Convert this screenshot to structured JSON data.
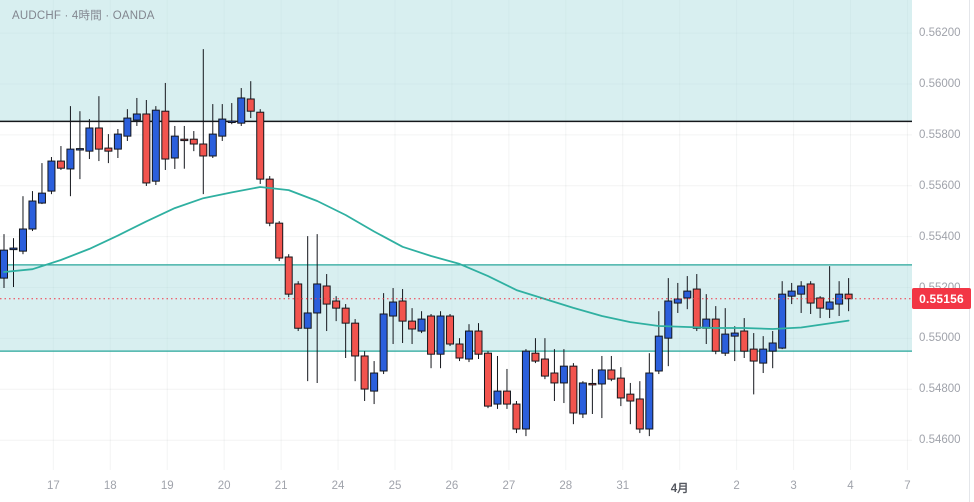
{
  "title": {
    "text": "AUDCHF · 4時間 · OANDA",
    "symbol": "AUDCHF",
    "interval": "4時間",
    "provider": "OANDA"
  },
  "chart_data": {
    "type": "candlestick",
    "symbol": "AUDCHF",
    "timeframe": "4時間",
    "provider": "OANDA",
    "current_price": "0.55156",
    "current_price_value": 0.55156,
    "y_axis": {
      "labels": [
        "0.56200",
        "0.56000",
        "0.55800",
        "0.55600",
        "0.55400",
        "0.55200",
        "0.55000",
        "0.54800",
        "0.54600"
      ],
      "values": [
        0.562,
        0.56,
        0.558,
        0.556,
        0.554,
        0.552,
        0.55,
        0.548,
        0.546
      ]
    },
    "x_axis": {
      "labels": [
        "17",
        "18",
        "19",
        "20",
        "21",
        "24",
        "25",
        "26",
        "27",
        "28",
        "31",
        "4月",
        "2",
        "3",
        "4",
        "7"
      ],
      "emphasized_label": "4月",
      "first_tick_candle_index": 5.2,
      "candles_per_tick": 6
    },
    "zones": [
      {
        "name": "upper-supply-zone",
        "top": 0.5633,
        "bottom": 0.55853
      },
      {
        "name": "mid-demand-zone",
        "top": 0.55289,
        "bottom": 0.5495
      }
    ],
    "resistance_line_price": 0.55853,
    "candles": [
      [
        0.55237,
        0.5541,
        0.55198,
        0.55347
      ],
      [
        0.55349,
        0.55394,
        0.55202,
        0.55355
      ],
      [
        0.55343,
        0.55559,
        0.55331,
        0.5543
      ],
      [
        0.5543,
        0.55579,
        0.55422,
        0.5554
      ],
      [
        0.55532,
        0.55689,
        0.55528,
        0.55571
      ],
      [
        0.55579,
        0.55713,
        0.55567,
        0.55697
      ],
      [
        0.55697,
        0.55756,
        0.55662,
        0.55669
      ],
      [
        0.55666,
        0.55913,
        0.55559,
        0.55744
      ],
      [
        0.55742,
        0.55893,
        0.55626,
        0.55746
      ],
      [
        0.55736,
        0.55862,
        0.55705,
        0.55827
      ],
      [
        0.55827,
        0.55952,
        0.55697,
        0.55744
      ],
      [
        0.55748,
        0.55803,
        0.55689,
        0.55736
      ],
      [
        0.55744,
        0.55823,
        0.55709,
        0.55803
      ],
      [
        0.55795,
        0.55901,
        0.55776,
        0.55866
      ],
      [
        0.55858,
        0.55945,
        0.55835,
        0.55882
      ],
      [
        0.55882,
        0.55937,
        0.55599,
        0.55611
      ],
      [
        0.55618,
        0.55913,
        0.55603,
        0.55897
      ],
      [
        0.55893,
        0.56004,
        0.55662,
        0.55705
      ],
      [
        0.55709,
        0.55835,
        0.55666,
        0.55795
      ],
      [
        0.55783,
        0.55835,
        0.55667,
        0.55779
      ],
      [
        0.55783,
        0.55815,
        0.55736,
        0.55764
      ],
      [
        0.55764,
        0.56137,
        0.55567,
        0.55717
      ],
      [
        0.55717,
        0.55921,
        0.55709,
        0.55803
      ],
      [
        0.55795,
        0.55921,
        0.55776,
        0.55862
      ],
      [
        0.55852,
        0.55925,
        0.55842,
        0.55854
      ],
      [
        0.55846,
        0.55984,
        0.55835,
        0.55945
      ],
      [
        0.55941,
        0.56011,
        0.55866,
        0.55893
      ],
      [
        0.55889,
        0.55901,
        0.55607,
        0.55626
      ],
      [
        0.55626,
        0.55638,
        0.55441,
        0.55453
      ],
      [
        0.55453,
        0.55461,
        0.55304,
        0.55316
      ],
      [
        0.5532,
        0.55331,
        0.55162,
        0.55174
      ],
      [
        0.55214,
        0.55225,
        0.55029,
        0.5504
      ],
      [
        0.5504,
        0.55402,
        0.54832,
        0.551
      ],
      [
        0.551,
        0.5541,
        0.54825,
        0.55214
      ],
      [
        0.55206,
        0.55253,
        0.55029,
        0.55135
      ],
      [
        0.55147,
        0.55166,
        0.55068,
        0.55119
      ],
      [
        0.55119,
        0.55135,
        0.54923,
        0.5506
      ],
      [
        0.5506,
        0.55076,
        0.54832,
        0.54931
      ],
      [
        0.54931,
        0.5495,
        0.54754,
        0.54801
      ],
      [
        0.54793,
        0.54911,
        0.54742,
        0.54864
      ],
      [
        0.54872,
        0.55178,
        0.5486,
        0.55096
      ],
      [
        0.55088,
        0.55198,
        0.54978,
        0.55143
      ],
      [
        0.55147,
        0.55194,
        0.54982,
        0.55068
      ],
      [
        0.55068,
        0.55119,
        0.54978,
        0.55037
      ],
      [
        0.55029,
        0.55107,
        0.55021,
        0.55076
      ],
      [
        0.55088,
        0.55096,
        0.54883,
        0.54938
      ],
      [
        0.54938,
        0.55107,
        0.54883,
        0.55088
      ],
      [
        0.55088,
        0.55096,
        0.5497,
        0.54978
      ],
      [
        0.54978,
        0.55001,
        0.54911,
        0.54923
      ],
      [
        0.54919,
        0.55056,
        0.54907,
        0.55029
      ],
      [
        0.55029,
        0.5506,
        0.54919,
        0.54938
      ],
      [
        0.54942,
        0.5495,
        0.54726,
        0.54734
      ],
      [
        0.54742,
        0.54931,
        0.54723,
        0.54793
      ],
      [
        0.54793,
        0.5488,
        0.54723,
        0.54742
      ],
      [
        0.54742,
        0.54754,
        0.54628,
        0.54644
      ],
      [
        0.54644,
        0.54958,
        0.54616,
        0.5495
      ],
      [
        0.54942,
        0.55001,
        0.54903,
        0.54911
      ],
      [
        0.54919,
        0.55001,
        0.5484,
        0.54852
      ],
      [
        0.54864,
        0.54958,
        0.54754,
        0.54825
      ],
      [
        0.54825,
        0.54958,
        0.54746,
        0.54891
      ],
      [
        0.54891,
        0.54903,
        0.54663,
        0.54707
      ],
      [
        0.54703,
        0.54832,
        0.54687,
        0.54825
      ],
      [
        0.54823,
        0.5488,
        0.54703,
        0.54821
      ],
      [
        0.54821,
        0.54931,
        0.54687,
        0.54876
      ],
      [
        0.54876,
        0.54931,
        0.54832,
        0.5484
      ],
      [
        0.54844,
        0.54887,
        0.54734,
        0.54766
      ],
      [
        0.54781,
        0.54825,
        0.54663,
        0.54754
      ],
      [
        0.54762,
        0.54832,
        0.54628,
        0.54644
      ],
      [
        0.54644,
        0.54942,
        0.54616,
        0.54864
      ],
      [
        0.54872,
        0.55107,
        0.5486,
        0.55009
      ],
      [
        0.55001,
        0.55237,
        0.54891,
        0.55147
      ],
      [
        0.55139,
        0.55218,
        0.551,
        0.55155
      ],
      [
        0.55159,
        0.55245,
        0.55115,
        0.55186
      ],
      [
        0.55194,
        0.55253,
        0.55029,
        0.5504
      ],
      [
        0.5504,
        0.55174,
        0.54978,
        0.55076
      ],
      [
        0.55076,
        0.55127,
        0.54938,
        0.5495
      ],
      [
        0.54942,
        0.55119,
        0.54931,
        0.55017
      ],
      [
        0.55009,
        0.55048,
        0.54911,
        0.55021
      ],
      [
        0.55029,
        0.5508,
        0.54923,
        0.5495
      ],
      [
        0.54958,
        0.55021,
        0.5478,
        0.54911
      ],
      [
        0.54903,
        0.55009,
        0.54864,
        0.54958
      ],
      [
        0.5495,
        0.55029,
        0.54883,
        0.54982
      ],
      [
        0.54962,
        0.55225,
        0.54958,
        0.55174
      ],
      [
        0.55166,
        0.55218,
        0.55135,
        0.55186
      ],
      [
        0.55174,
        0.55225,
        0.551,
        0.55206
      ],
      [
        0.55214,
        0.55225,
        0.55096,
        0.55139
      ],
      [
        0.55159,
        0.55166,
        0.5508,
        0.55119
      ],
      [
        0.55115,
        0.55284,
        0.5508,
        0.55143
      ],
      [
        0.55135,
        0.55225,
        0.55088,
        0.55174
      ],
      [
        0.55174,
        0.55237,
        0.55107,
        0.55156
      ]
    ],
    "ma_line": {
      "name": "moving-average",
      "points": [
        [
          0,
          0.55261
        ],
        [
          3,
          0.55272
        ],
        [
          6,
          0.55308
        ],
        [
          9,
          0.55352
        ],
        [
          12,
          0.55404
        ],
        [
          15,
          0.5546
        ],
        [
          18,
          0.55512
        ],
        [
          21,
          0.55551
        ],
        [
          24,
          0.55574
        ],
        [
          27,
          0.55595
        ],
        [
          30,
          0.55583
        ],
        [
          33,
          0.5554
        ],
        [
          36,
          0.55485
        ],
        [
          39,
          0.5542
        ],
        [
          42,
          0.5536
        ],
        [
          45,
          0.55324
        ],
        [
          48,
          0.55293
        ],
        [
          51,
          0.55245
        ],
        [
          54,
          0.5519
        ],
        [
          57,
          0.55155
        ],
        [
          60,
          0.5512
        ],
        [
          63,
          0.55088
        ],
        [
          66,
          0.55064
        ],
        [
          69,
          0.55049
        ],
        [
          72,
          0.55045
        ],
        [
          75,
          0.55041
        ],
        [
          78,
          0.55041
        ],
        [
          81,
          0.55037
        ],
        [
          84,
          0.55043
        ],
        [
          87,
          0.55059
        ],
        [
          89,
          0.5507
        ]
      ]
    },
    "colors": {
      "up_candle": "#2b5fdc",
      "down_candle": "#f2544e",
      "candle_border": "#14161c",
      "wick": "#14161c",
      "ma": "#2fb0a1",
      "zone_fill": "rgba(178,223,226,0.5)",
      "zone_border": "#26a69a",
      "resistance_line": "#15171b",
      "price_line": "#f23645",
      "badge_bg": "#f23645",
      "badge_text": "#ffffff",
      "axis_text": "#a0a3ab",
      "grid": "rgba(42,46,57,0.055)"
    },
    "legend_position": "top-left",
    "grid": true
  }
}
